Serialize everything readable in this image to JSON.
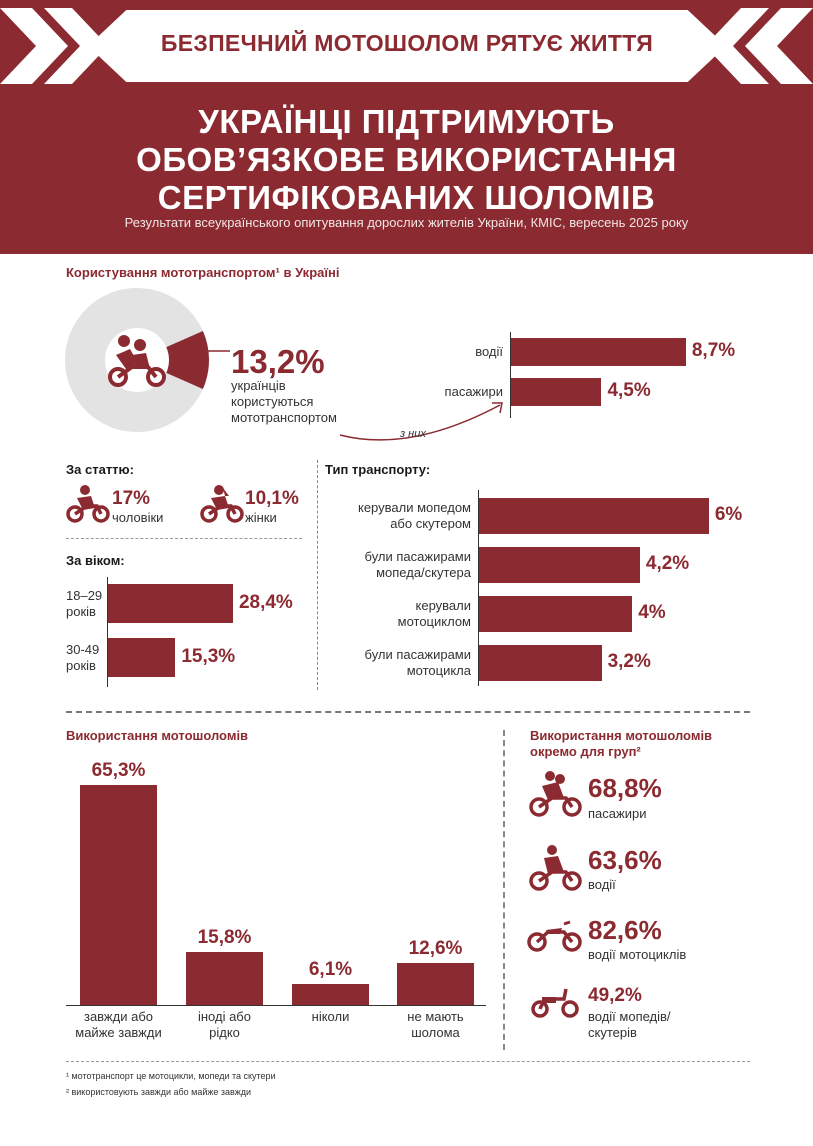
{
  "header": {
    "banner": "БЕЗПЕЧНИЙ МОТОШОЛОМ РЯТУЄ ЖИТТЯ",
    "title_lines": [
      "УКРАЇНЦІ ПІДТРИМУЮТЬ",
      "ОБОВ’ЯЗКОВЕ ВИКОРИСТАННЯ",
      "СЕРТИФІКОВАНИХ ШОЛОМІВ"
    ],
    "subtitle": "Результати всеукраїнського опитування дорослих жителів України, КМІС, вересень 2025 року"
  },
  "usage": {
    "title": "Користування мототранспортом¹ в Україні",
    "value": "13,2%",
    "caption_lines": [
      "українців",
      "користуються",
      "мототранспортом"
    ],
    "of_them": "з них"
  },
  "sex": {
    "title": "За статтю:",
    "men_value": "17%",
    "men_label": "чоловіки",
    "women_value": "10,1%",
    "women_label": "жінки"
  },
  "age": {
    "title": "За віком:"
  },
  "transport": {
    "title": "Тип транспорту:"
  },
  "helmet": {
    "title": "Використання мотошоломів"
  },
  "groups": {
    "title_lines": [
      "Використання мотошоломів",
      "окремо для груп²"
    ],
    "items": [
      {
        "icon": "passenger-motorcycle-icon",
        "value": "68,8%",
        "label_lines": [
          "пасажири"
        ]
      },
      {
        "icon": "rider-icon",
        "value": "63,6%",
        "label_lines": [
          "водії"
        ]
      },
      {
        "icon": "motorcycle-icon",
        "value": "82,6%",
        "label_lines": [
          "водії мотоциклів"
        ]
      },
      {
        "icon": "scooter-icon",
        "value": "49,2%",
        "label_lines": [
          "водії мопедів/",
          "скутерів"
        ]
      }
    ]
  },
  "footnotes": [
    "¹ мототранспорт це мотоцикли, мопеди та скутери",
    "² використовують завжди або майже завжди"
  ],
  "colors": {
    "brand": "#8b2a30",
    "donut_rest": "#e3e3e3"
  },
  "chart_data": [
    {
      "type": "pie",
      "title": "Користування мототранспортом¹ в Україні",
      "categories": [
        "користуються мототранспортом",
        "інші"
      ],
      "values": [
        13.2,
        86.8
      ],
      "value_labels": [
        "13,2%",
        ""
      ]
    },
    {
      "type": "bar",
      "orientation": "horizontal",
      "categories": [
        "водії",
        "пасажири"
      ],
      "values": [
        8.7,
        4.5
      ],
      "value_labels": [
        "8,7%",
        "4,5%"
      ],
      "xlim": [
        0,
        10
      ]
    },
    {
      "type": "bar",
      "orientation": "horizontal",
      "title": "За віком:",
      "categories": [
        [
          "18–29",
          "років"
        ],
        [
          "30-49",
          "років"
        ]
      ],
      "values": [
        28.4,
        15.3
      ],
      "value_labels": [
        "28,4%",
        "15,3%"
      ],
      "xlim": [
        0,
        30
      ]
    },
    {
      "type": "bar",
      "orientation": "horizontal",
      "title": "Тип транспорту:",
      "categories": [
        [
          "керували мопедом",
          "або скутером"
        ],
        [
          "були пасажирами",
          "мопеда/скутера"
        ],
        [
          "керували",
          "мотоциклом"
        ],
        [
          "були пасажирами",
          "мотоцикла"
        ]
      ],
      "values": [
        6,
        4.2,
        4,
        3.2
      ],
      "value_labels": [
        "6%",
        "4,2%",
        "4%",
        "3,2%"
      ],
      "xlim": [
        0,
        6.5
      ]
    },
    {
      "type": "bar",
      "orientation": "vertical",
      "title": "Використання мотошоломів",
      "categories": [
        [
          "завжди або",
          "майже завжди"
        ],
        [
          "іноді або",
          "рідко"
        ],
        [
          "ніколи"
        ],
        [
          "не мають",
          "шолома"
        ]
      ],
      "values": [
        65.3,
        15.8,
        6.1,
        12.6
      ],
      "value_labels": [
        "65,3%",
        "15,8%",
        "6,1%",
        "12,6%"
      ],
      "ylim": [
        0,
        70
      ]
    }
  ]
}
